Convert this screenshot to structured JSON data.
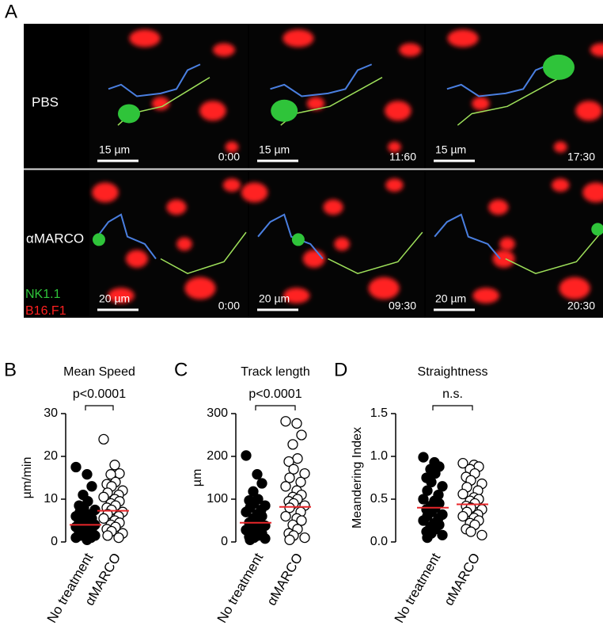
{
  "panel_a": {
    "label": "A",
    "rows": [
      {
        "label": "PBS",
        "frames": [
          {
            "scale_bar": "15 µm",
            "time": "0:00"
          },
          {
            "scale_bar": "15 µm",
            "time": "11:60"
          },
          {
            "scale_bar": "15 µm",
            "time": "17:30"
          }
        ]
      },
      {
        "label": "αMARCO",
        "frames": [
          {
            "scale_bar": "20 µm",
            "time": "0:00"
          },
          {
            "scale_bar": "20 µm",
            "time": "09:30"
          },
          {
            "scale_bar": "20 µm",
            "time": "20:30"
          }
        ]
      }
    ],
    "legend": [
      "NK1.1",
      "B16.F1"
    ]
  },
  "chart_data": [
    {
      "type": "strip",
      "panel_label": "B",
      "title": "Mean Speed",
      "y_label": "µm/min",
      "categories": [
        "No treatment",
        "αMARCO"
      ],
      "colors": [
        "#000000",
        "#ffffff"
      ],
      "mean_color": "#e8262a",
      "groups": [
        {
          "values": [
            17.5,
            15.8,
            13,
            11,
            9.5,
            8.5,
            8,
            7.5,
            7,
            6.5,
            6,
            6,
            5.5,
            5,
            5,
            4.5,
            4.5,
            4,
            4,
            3.5,
            3.5,
            3,
            3,
            2.5,
            2.5,
            2,
            2,
            1.5,
            1.5,
            1,
            1,
            0.5
          ],
          "mean": 4
        },
        {
          "values": [
            24,
            18,
            16,
            15.8,
            14,
            13.5,
            13,
            12,
            11.5,
            11,
            10.5,
            10,
            9.5,
            9,
            8.5,
            8,
            7.5,
            7,
            6.5,
            6,
            5.5,
            5,
            4.5,
            4,
            3.5,
            3,
            2.5,
            2,
            1.5,
            1
          ],
          "mean": 7.3
        }
      ],
      "annotation": "p<0.0001",
      "ylim": [
        0,
        30
      ],
      "yticks": [
        0,
        10,
        20,
        30
      ]
    },
    {
      "type": "strip",
      "panel_label": "C",
      "title": "Track length",
      "y_label": "µm",
      "categories": [
        "No treatment",
        "αMARCO"
      ],
      "colors": [
        "#000000",
        "#ffffff"
      ],
      "mean_color": "#e8262a",
      "groups": [
        {
          "values": [
            202,
            158,
            137,
            118,
            100,
            97,
            90,
            85,
            80,
            75,
            70,
            65,
            60,
            55,
            50,
            45,
            40,
            38,
            35,
            30,
            28,
            25,
            20,
            18,
            15,
            12,
            10,
            8,
            5
          ],
          "mean": 45
        },
        {
          "values": [
            282,
            277,
            250,
            228,
            195,
            188,
            170,
            160,
            150,
            140,
            130,
            120,
            110,
            105,
            100,
            95,
            90,
            85,
            80,
            70,
            60,
            55,
            50,
            40,
            30,
            20,
            15,
            10,
            5
          ],
          "mean": 82
        }
      ],
      "annotation": "p<0.0001",
      "ylim": [
        0,
        300
      ],
      "yticks": [
        0,
        100,
        200,
        300
      ]
    },
    {
      "type": "strip",
      "panel_label": "D",
      "title": "Straightness",
      "y_label": "Meandering Index",
      "categories": [
        "No treatment",
        "αMARCO"
      ],
      "colors": [
        "#000000",
        "#ffffff"
      ],
      "mean_color": "#e8262a",
      "groups": [
        {
          "values": [
            0.99,
            0.93,
            0.88,
            0.85,
            0.8,
            0.75,
            0.7,
            0.65,
            0.6,
            0.55,
            0.5,
            0.48,
            0.45,
            0.42,
            0.4,
            0.38,
            0.35,
            0.32,
            0.3,
            0.28,
            0.25,
            0.22,
            0.2,
            0.18,
            0.15,
            0.12,
            0.1,
            0.08,
            0.05
          ],
          "mean": 0.4
        },
        {
          "values": [
            0.92,
            0.9,
            0.88,
            0.85,
            0.8,
            0.76,
            0.72,
            0.68,
            0.64,
            0.6,
            0.56,
            0.52,
            0.5,
            0.48,
            0.45,
            0.42,
            0.4,
            0.38,
            0.35,
            0.32,
            0.3,
            0.28,
            0.25,
            0.22,
            0.2,
            0.15,
            0.12,
            0.08
          ],
          "mean": 0.44
        }
      ],
      "annotation": "n.s.",
      "ylim": [
        0,
        1.5
      ],
      "yticks": [
        {
          "value": 0,
          "label": "0.0"
        },
        {
          "value": 0.5,
          "label": "0.5"
        },
        {
          "value": 1,
          "label": "1.0"
        },
        {
          "value": 1.5,
          "label": "1.5"
        }
      ]
    }
  ]
}
